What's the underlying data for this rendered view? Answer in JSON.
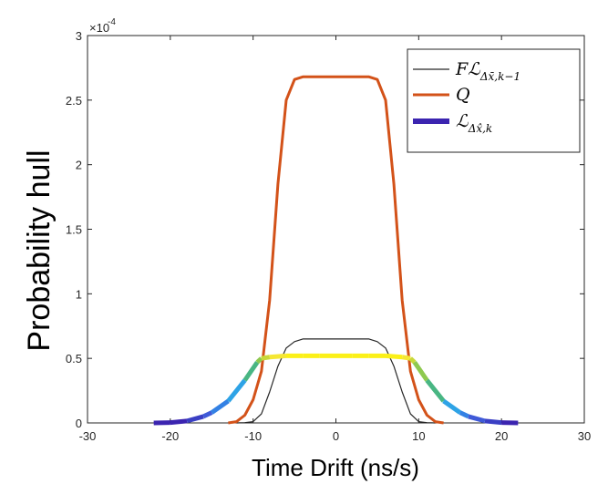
{
  "chart_data": {
    "type": "line",
    "xlabel": "Time Drift (ns/s)",
    "ylabel": "Probability hull",
    "xlim": [
      -30,
      30
    ],
    "ylim": [
      0,
      0.0003
    ],
    "x_ticks": [
      -30,
      -20,
      -10,
      0,
      10,
      20,
      30
    ],
    "y_ticks": [
      0,
      5e-05,
      0.0001,
      0.00015,
      0.0002,
      0.00025,
      0.0003
    ],
    "y_tick_labels": [
      "0",
      "0.5",
      "1",
      "1.5",
      "2",
      "2.5",
      "3"
    ],
    "y_exponent": "×10",
    "y_exponent_power": "-4",
    "grid": false,
    "legend_position": "top-right",
    "series": [
      {
        "name": "FL_{Δx̄,k-1}",
        "legend_label": "Fℒ",
        "legend_sub": "Δx̄,k−1",
        "color": "#262626",
        "style": "thin",
        "x": [
          -12,
          -11,
          -10,
          -9,
          -8,
          -7,
          -6,
          -5,
          -4,
          -3,
          -2,
          -1,
          0,
          1,
          2,
          3,
          4,
          5,
          6,
          7,
          8,
          9,
          10,
          11,
          12
        ],
        "y": [
          0,
          2e-07,
          1e-06,
          7e-06,
          2.4e-05,
          4.4e-05,
          5.8e-05,
          6.3e-05,
          6.5e-05,
          6.5e-05,
          6.5e-05,
          6.5e-05,
          6.5e-05,
          6.5e-05,
          6.5e-05,
          6.5e-05,
          6.5e-05,
          6.3e-05,
          5.8e-05,
          4.4e-05,
          2.4e-05,
          7e-06,
          1e-06,
          2e-07,
          0
        ]
      },
      {
        "name": "Q",
        "legend_label": "Q",
        "legend_sub": "",
        "color": "#d35219",
        "style": "medium",
        "x": [
          -13,
          -12,
          -11,
          -10,
          -9,
          -8,
          -7,
          -6,
          -5,
          -4,
          -3,
          -2,
          -1,
          0,
          1,
          2,
          3,
          4,
          5,
          6,
          7,
          8,
          9,
          10,
          11,
          12,
          13
        ],
        "y": [
          0,
          1e-06,
          6e-06,
          1.8e-05,
          4e-05,
          9.5e-05,
          0.000185,
          0.00025,
          0.000266,
          0.000268,
          0.000268,
          0.000268,
          0.000268,
          0.000268,
          0.000268,
          0.000268,
          0.000268,
          0.000268,
          0.000266,
          0.00025,
          0.000185,
          9.5e-05,
          4e-05,
          1.8e-05,
          6e-06,
          1e-06,
          0
        ]
      },
      {
        "name": "L_{Δx̂,k}",
        "legend_label": "ℒ",
        "legend_sub": "Δx̂,k",
        "color": "#3b24b0",
        "style": "thick-colormapped",
        "x": [
          -22,
          -20,
          -18,
          -16,
          -15,
          -13,
          -11,
          -9.5,
          -9,
          -8,
          -6,
          -4,
          -2,
          0,
          2,
          4,
          6,
          8,
          9,
          9.5,
          11,
          13,
          15,
          16,
          18,
          20,
          22
        ],
        "y": [
          0,
          3e-07,
          1.5e-06,
          5e-06,
          8e-06,
          1.7e-05,
          3.3e-05,
          4.7e-05,
          5e-05,
          5.1e-05,
          5.2e-05,
          5.2e-05,
          5.2e-05,
          5.2e-05,
          5.2e-05,
          5.2e-05,
          5.2e-05,
          5.1e-05,
          5e-05,
          4.7e-05,
          3.3e-05,
          1.7e-05,
          8e-06,
          5e-06,
          1.5e-06,
          3e-07,
          0
        ],
        "segment_colors": [
          "#3b24b0",
          "#3b24b0",
          "#3a3fc4",
          "#3f5ad8",
          "#3381e4",
          "#2ea3e6",
          "#49b683",
          "#8ec94f",
          "#c9d83a",
          "#f5e733",
          "#fbf017",
          "#fbf017",
          "#fbf017",
          "#fbf017",
          "#fbf017",
          "#fbf017",
          "#fbf017",
          "#f5e733",
          "#c9d83a",
          "#8ec94f",
          "#49b683",
          "#2ea3e6",
          "#3381e4",
          "#3f5ad8",
          "#3a3fc4",
          "#3b24b0"
        ]
      }
    ]
  }
}
